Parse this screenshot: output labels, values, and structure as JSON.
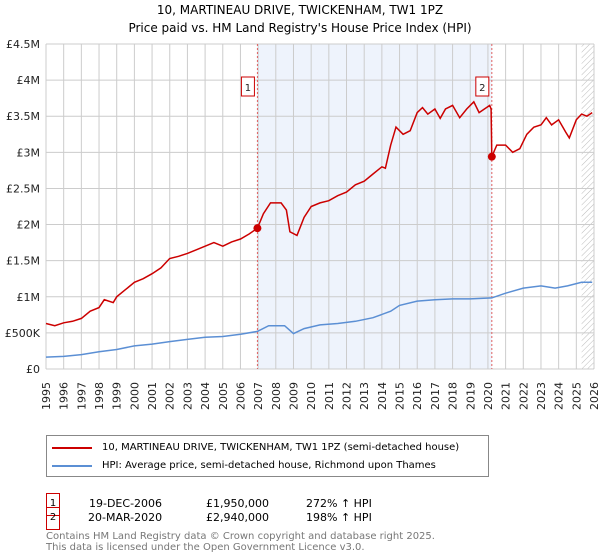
{
  "chart_data": {
    "type": "line",
    "title": "10, MARTINEAU DRIVE, TWICKENHAM, TW1 1PZ",
    "subtitle": "Price paid vs. HM Land Registry's House Price Index (HPI)",
    "xlim": [
      1995,
      2026
    ],
    "ylim": [
      0,
      4500000
    ],
    "x_ticks": [
      "1995",
      "1996",
      "1997",
      "1998",
      "1999",
      "2000",
      "2001",
      "2002",
      "2003",
      "2004",
      "2005",
      "2006",
      "2007",
      "2008",
      "2009",
      "2010",
      "2011",
      "2012",
      "2013",
      "2014",
      "2015",
      "2016",
      "2017",
      "2018",
      "2019",
      "2020",
      "2021",
      "2022",
      "2023",
      "2024",
      "2025",
      "2026"
    ],
    "y_ticks": [
      {
        "v": 0,
        "label": "£0"
      },
      {
        "v": 500000,
        "label": "£500K"
      },
      {
        "v": 1000000,
        "label": "£1M"
      },
      {
        "v": 1500000,
        "label": "£1.5M"
      },
      {
        "v": 2000000,
        "label": "£2M"
      },
      {
        "v": 2500000,
        "label": "£2.5M"
      },
      {
        "v": 3000000,
        "label": "£3M"
      },
      {
        "v": 3500000,
        "label": "£3.5M"
      },
      {
        "v": 4000000,
        "label": "£4M"
      },
      {
        "v": 4500000,
        "label": "£4.5M"
      }
    ],
    "grid": true,
    "shaded_range": [
      2006.96,
      2020.22
    ],
    "forecast_from": 2025.3,
    "series": [
      {
        "name": "10, MARTINEAU DRIVE, TWICKENHAM, TW1 1PZ (semi-detached house)",
        "color": "#cc0000",
        "points": [
          [
            1995,
            630000
          ],
          [
            1995.5,
            600000
          ],
          [
            1996,
            640000
          ],
          [
            1996.5,
            660000
          ],
          [
            1997,
            700000
          ],
          [
            1997.5,
            800000
          ],
          [
            1998,
            850000
          ],
          [
            1998.3,
            960000
          ],
          [
            1998.8,
            920000
          ],
          [
            1999,
            1000000
          ],
          [
            1999.5,
            1100000
          ],
          [
            2000,
            1200000
          ],
          [
            2000.5,
            1250000
          ],
          [
            2001,
            1320000
          ],
          [
            2001.5,
            1400000
          ],
          [
            2002,
            1530000
          ],
          [
            2002.5,
            1560000
          ],
          [
            2003,
            1600000
          ],
          [
            2003.5,
            1650000
          ],
          [
            2004,
            1700000
          ],
          [
            2004.5,
            1750000
          ],
          [
            2005,
            1700000
          ],
          [
            2005.5,
            1760000
          ],
          [
            2006,
            1800000
          ],
          [
            2006.5,
            1870000
          ],
          [
            2006.96,
            1950000
          ],
          [
            2007.3,
            2150000
          ],
          [
            2007.7,
            2300000
          ],
          [
            2008.3,
            2300000
          ],
          [
            2008.6,
            2200000
          ],
          [
            2008.8,
            1900000
          ],
          [
            2009.2,
            1850000
          ],
          [
            2009.6,
            2100000
          ],
          [
            2010,
            2250000
          ],
          [
            2010.5,
            2300000
          ],
          [
            2011,
            2330000
          ],
          [
            2011.5,
            2400000
          ],
          [
            2012,
            2450000
          ],
          [
            2012.5,
            2550000
          ],
          [
            2013,
            2600000
          ],
          [
            2013.5,
            2700000
          ],
          [
            2014,
            2800000
          ],
          [
            2014.2,
            2780000
          ],
          [
            2014.5,
            3100000
          ],
          [
            2014.8,
            3350000
          ],
          [
            2015.2,
            3250000
          ],
          [
            2015.6,
            3300000
          ],
          [
            2016,
            3550000
          ],
          [
            2016.3,
            3620000
          ],
          [
            2016.6,
            3530000
          ],
          [
            2017,
            3600000
          ],
          [
            2017.3,
            3470000
          ],
          [
            2017.6,
            3600000
          ],
          [
            2018,
            3650000
          ],
          [
            2018.4,
            3480000
          ],
          [
            2018.8,
            3600000
          ],
          [
            2019.2,
            3700000
          ],
          [
            2019.5,
            3550000
          ],
          [
            2019.8,
            3600000
          ],
          [
            2020.1,
            3650000
          ],
          [
            2020.18,
            3600000
          ],
          [
            2020.22,
            2940000
          ],
          [
            2020.5,
            3100000
          ],
          [
            2021,
            3100000
          ],
          [
            2021.4,
            3000000
          ],
          [
            2021.8,
            3050000
          ],
          [
            2022.2,
            3250000
          ],
          [
            2022.6,
            3350000
          ],
          [
            2023,
            3380000
          ],
          [
            2023.3,
            3480000
          ],
          [
            2023.6,
            3380000
          ],
          [
            2024,
            3450000
          ],
          [
            2024.4,
            3280000
          ],
          [
            2024.6,
            3200000
          ],
          [
            2025,
            3450000
          ],
          [
            2025.3,
            3530000
          ],
          [
            2025.6,
            3500000
          ],
          [
            2025.9,
            3550000
          ]
        ]
      },
      {
        "name": "HPI: Average price, semi-detached house, Richmond upon Thames",
        "color": "#5b8fd4",
        "points": [
          [
            1995,
            165000
          ],
          [
            1996,
            175000
          ],
          [
            1997,
            200000
          ],
          [
            1998,
            240000
          ],
          [
            1999,
            270000
          ],
          [
            2000,
            320000
          ],
          [
            2001,
            345000
          ],
          [
            2002,
            380000
          ],
          [
            2003,
            410000
          ],
          [
            2004,
            440000
          ],
          [
            2005,
            450000
          ],
          [
            2006,
            480000
          ],
          [
            2006.96,
            520000
          ],
          [
            2007.6,
            600000
          ],
          [
            2008.5,
            600000
          ],
          [
            2009,
            490000
          ],
          [
            2009.6,
            560000
          ],
          [
            2010.5,
            610000
          ],
          [
            2011.5,
            630000
          ],
          [
            2012.5,
            660000
          ],
          [
            2013.5,
            710000
          ],
          [
            2014.5,
            800000
          ],
          [
            2015,
            880000
          ],
          [
            2016,
            940000
          ],
          [
            2017,
            960000
          ],
          [
            2018,
            970000
          ],
          [
            2019,
            970000
          ],
          [
            2020.22,
            985000
          ],
          [
            2021,
            1050000
          ],
          [
            2022,
            1120000
          ],
          [
            2023,
            1150000
          ],
          [
            2023.8,
            1120000
          ],
          [
            2024.5,
            1150000
          ],
          [
            2025.3,
            1200000
          ],
          [
            2025.9,
            1200000
          ]
        ]
      }
    ],
    "sales": [
      {
        "label": "1",
        "x": 2006.96,
        "y": 1950000
      },
      {
        "label": "2",
        "x": 2020.22,
        "y": 2940000
      }
    ]
  },
  "legend": [
    "10, MARTINEAU DRIVE, TWICKENHAM, TW1 1PZ (semi-detached house)",
    "HPI: Average price, semi-detached house, Richmond upon Thames"
  ],
  "transactions": [
    {
      "num": "1",
      "date": "19-DEC-2006",
      "price": "£1,950,000",
      "hpi": "272% ↑ HPI"
    },
    {
      "num": "2",
      "date": "20-MAR-2020",
      "price": "£2,940,000",
      "hpi": "198% ↑ HPI"
    }
  ],
  "footer": [
    "Contains HM Land Registry data © Crown copyright and database right 2025.",
    "This data is licensed under the Open Government Licence v3.0."
  ]
}
